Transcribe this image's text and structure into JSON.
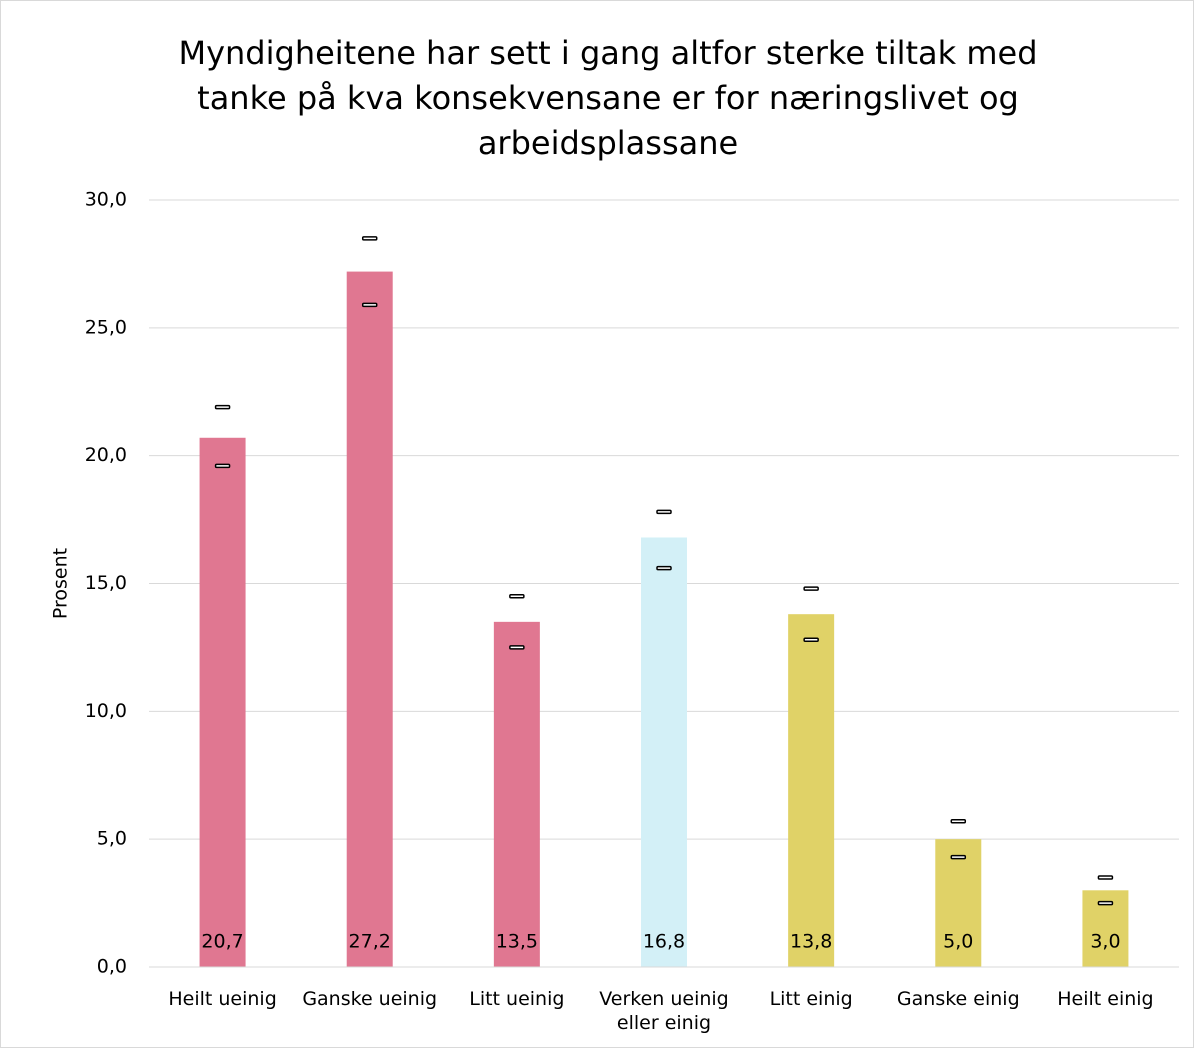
{
  "chart_data": {
    "type": "bar",
    "title": "Myndigheitene har sett i gang altfor sterke tiltak med tanke på kva konsekvensane er for næringslivet og arbeidsplassane",
    "y_label": "Prosent",
    "categories": [
      "Heilt ueinig",
      "Ganske ueinig",
      "Litt ueinig",
      "Verken ueinig eller einig",
      "Litt einig",
      "Ganske einig",
      "Heilt einig"
    ],
    "values": [
      20.7,
      27.2,
      13.5,
      16.8,
      13.8,
      5.0,
      3.0
    ],
    "value_labels": [
      "20,7",
      "27,2",
      "13,5",
      "16,8",
      "13,8",
      "5,0",
      "3,0"
    ],
    "error_high": [
      21.9,
      28.5,
      14.5,
      17.8,
      14.8,
      5.7,
      3.5
    ],
    "error_low": [
      19.6,
      25.9,
      12.5,
      15.6,
      12.8,
      4.3,
      2.5
    ],
    "colors": [
      "#e07791",
      "#e07791",
      "#e07791",
      "#d3f0f7",
      "#e0d267",
      "#e0d267",
      "#e0d267"
    ],
    "ylim": [
      0,
      30
    ],
    "yticks": [
      {
        "value": 0,
        "label": "0,0"
      },
      {
        "value": 5,
        "label": "5,0"
      },
      {
        "value": 10,
        "label": "10,0"
      },
      {
        "value": 15,
        "label": "15,0"
      },
      {
        "value": 20,
        "label": "20,0"
      },
      {
        "value": 25,
        "label": "25,0"
      },
      {
        "value": 30,
        "label": "30,0"
      }
    ],
    "grid": true
  }
}
